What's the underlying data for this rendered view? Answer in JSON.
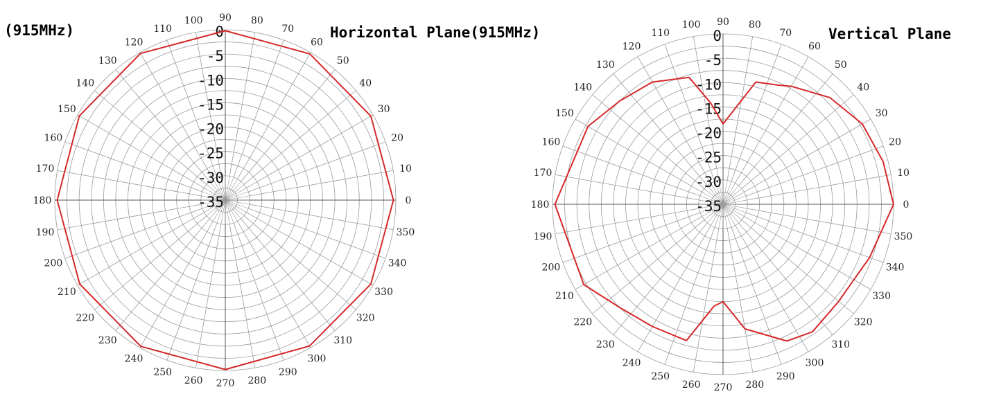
{
  "titles": {
    "left_freq": "(915MHz)",
    "left_plane": "Horizontal Plane(915MHz)",
    "right_plane": "Vertical Plane"
  },
  "colors": {
    "trace": "#d62728",
    "grid": "#9a9a9a",
    "axis": "#555555",
    "text": "#222222"
  },
  "chart_data": [
    {
      "type": "polar-line",
      "name": "horizontal",
      "r_ticks": [
        "0",
        "-5",
        "-10",
        "-15",
        "-20",
        "-25",
        "-30",
        "-35"
      ],
      "r_range_db": [
        -35,
        0
      ],
      "angle_ticks_deg": [
        0,
        10,
        20,
        30,
        40,
        50,
        60,
        70,
        80,
        90,
        100,
        110,
        120,
        130,
        140,
        150,
        160,
        170,
        180,
        190,
        200,
        210,
        220,
        230,
        240,
        250,
        260,
        270,
        280,
        290,
        300,
        310,
        320,
        330,
        340,
        350
      ],
      "series": [
        {
          "angle_deg": [
            0,
            30,
            60,
            90,
            120,
            150,
            180,
            210,
            240,
            270,
            300,
            330,
            360
          ],
          "gain_db": [
            -0.5,
            -0.5,
            -0.3,
            -0.2,
            -0.2,
            -0.4,
            -0.5,
            -0.5,
            -0.3,
            -0.2,
            -0.4,
            -0.5,
            -0.5
          ]
        }
      ]
    },
    {
      "type": "polar-line",
      "name": "vertical",
      "r_ticks": [
        "0",
        "-5",
        "-10",
        "-15",
        "-20",
        "-25",
        "-30",
        "-35"
      ],
      "r_range_db": [
        -35,
        0
      ],
      "angle_ticks_deg": [
        0,
        10,
        20,
        30,
        40,
        50,
        60,
        70,
        80,
        90,
        100,
        110,
        120,
        130,
        140,
        150,
        160,
        170,
        180,
        190,
        200,
        210,
        220,
        230,
        240,
        250,
        260,
        270,
        280,
        290,
        300,
        310,
        320,
        330,
        340,
        350
      ],
      "series": [
        {
          "angle_deg": [
            0,
            15,
            30,
            45,
            60,
            65,
            75,
            90,
            97,
            105,
            120,
            135,
            150,
            180,
            210,
            225,
            240,
            255,
            265,
            270,
            280,
            295,
            305,
            320,
            330,
            340,
            360
          ],
          "gain_db": [
            0,
            -1,
            -2,
            -4,
            -7,
            -8,
            -9,
            -18.5,
            -14,
            -8,
            -6,
            -5,
            -3,
            -0.5,
            -2,
            -5,
            -6,
            -6,
            -14,
            -15,
            -9,
            -4,
            -3,
            -4,
            -4,
            -3,
            0
          ]
        }
      ]
    }
  ]
}
